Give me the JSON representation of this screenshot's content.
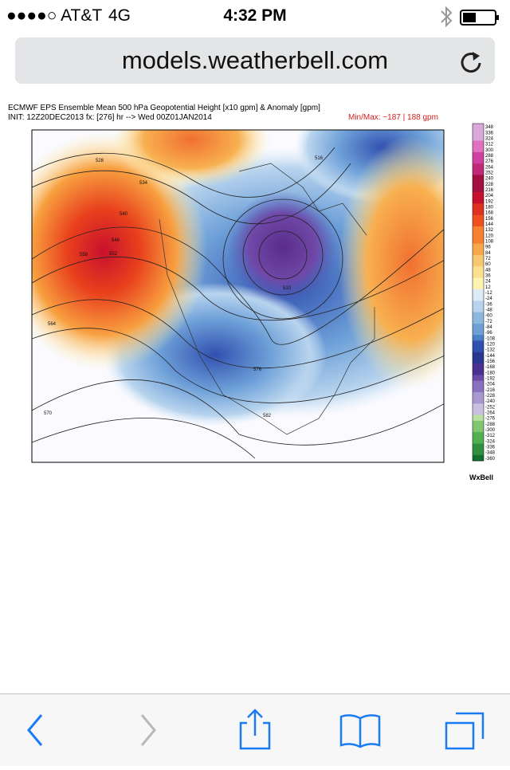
{
  "status_bar": {
    "carrier": "●●●●○ AT&T",
    "network": "4G",
    "time": "4:32 PM"
  },
  "address_bar": {
    "url": "models.weatherbell.com"
  },
  "map": {
    "title": "ECMWF EPS Ensemble Mean 500 hPa Geopotential Height [x10 gpm] & Anomaly [gpm]",
    "init": "INIT: 12Z20DEC2013 fx: [276] hr --> Wed 00Z01JAN2014",
    "minmax": "Min/Max:  −187 |  188 gpm",
    "colorbar_labels": [
      "348",
      "336",
      "324",
      "312",
      "300",
      "288",
      "276",
      "264",
      "252",
      "240",
      "228",
      "216",
      "204",
      "192",
      "180",
      "168",
      "156",
      "144",
      "132",
      "120",
      "108",
      "96",
      "84",
      "72",
      "60",
      "48",
      "36",
      "24",
      "12",
      "-12",
      "-24",
      "-36",
      "-48",
      "-60",
      "-72",
      "-84",
      "-96",
      "-108",
      "-120",
      "-132",
      "-144",
      "-156",
      "-168",
      "-180",
      "-192",
      "-204",
      "-216",
      "-228",
      "-240",
      "-252",
      "-264",
      "-276",
      "-288",
      "-300",
      "-312",
      "-324",
      "-336",
      "-348",
      "-360"
    ],
    "contour_labels": [
      "528",
      "534",
      "540",
      "546",
      "552",
      "558",
      "564",
      "570",
      "576",
      "582",
      "516",
      "510"
    ],
    "logo": "WxBell"
  }
}
